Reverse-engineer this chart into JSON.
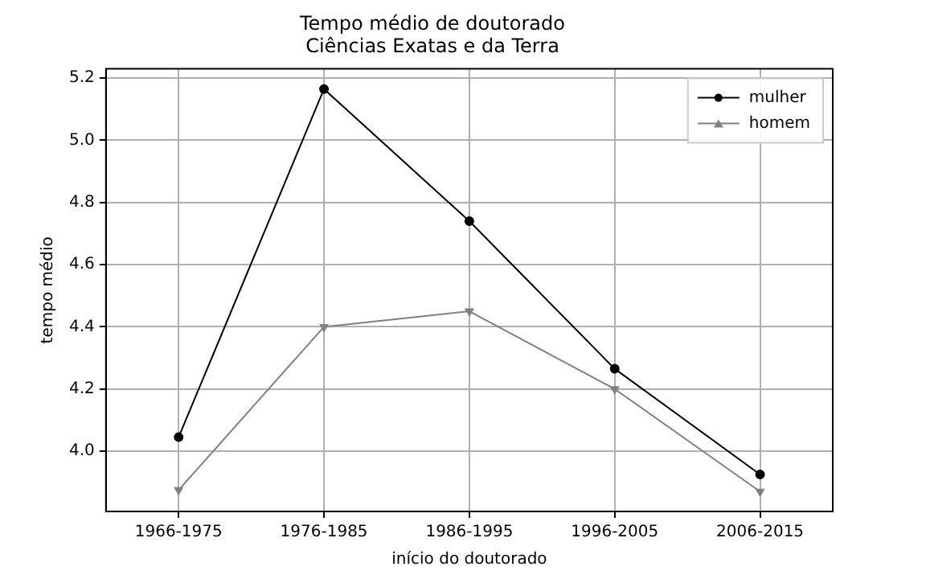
{
  "chart_data": {
    "type": "line",
    "title": "Tempo médio de doutorado\nCiências Exatas e da Terra",
    "xlabel": "início do doutorado",
    "ylabel": "tempo médio",
    "categories": [
      "1966-1975",
      "1976-1985",
      "1986-1995",
      "1996-2005",
      "2006-2015"
    ],
    "series": [
      {
        "name": "mulher",
        "color": "#000000",
        "marker": "circle",
        "values": [
          4.045,
          5.165,
          4.74,
          4.265,
          3.925
        ]
      },
      {
        "name": "homem",
        "color": "#808080",
        "marker": "triangle",
        "values": [
          3.875,
          4.4,
          4.45,
          4.2,
          3.87
        ]
      }
    ],
    "ylim": [
      3.806,
      5.23
    ],
    "yticks": [
      {
        "value": 4,
        "label": "4.0"
      },
      4.2,
      4.4,
      4.6,
      4.8,
      {
        "value": 5,
        "label": "5.0"
      },
      5.2
    ],
    "grid": true,
    "legend": "top right",
    "line_style": "solid"
  }
}
